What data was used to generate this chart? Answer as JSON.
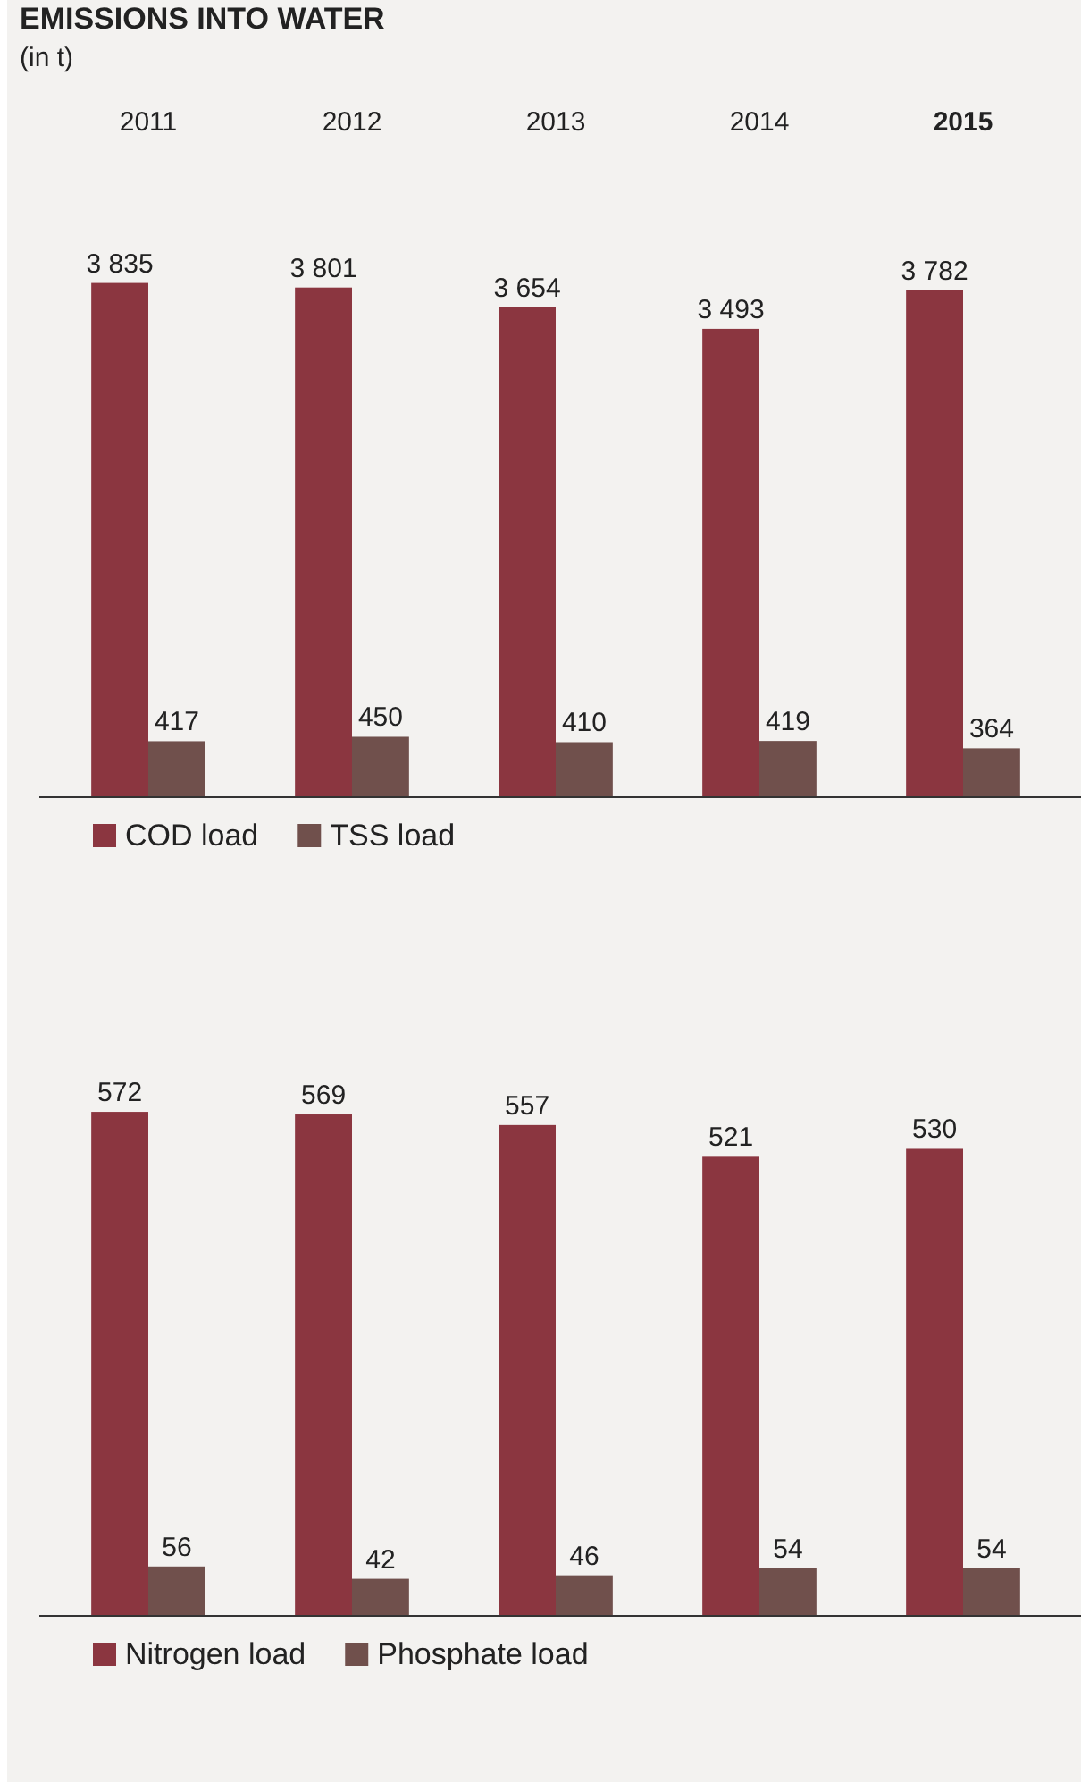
{
  "chart_data": [
    {
      "type": "bar",
      "title": "EMISSIONS INTO WATER",
      "subtitle": "(in t)",
      "categories": [
        "2011",
        "2012",
        "2013",
        "2014",
        "2015"
      ],
      "legend": "bottom left",
      "series": [
        {
          "name": "COD load",
          "color": "#8b3640",
          "values": [
            3835,
            3801,
            3654,
            3493,
            3782
          ],
          "value_labels": [
            "3 835",
            "3 801",
            "3 654",
            "3 493",
            "3 782"
          ]
        },
        {
          "name": "TSS load",
          "color": "#70504c",
          "values": [
            417,
            450,
            410,
            419,
            364
          ],
          "value_labels": [
            "417",
            "450",
            "410",
            "419",
            "364"
          ]
        }
      ]
    },
    {
      "type": "bar",
      "categories": [
        null,
        null,
        null,
        null,
        null
      ],
      "legend": "bottom left",
      "data_labels": true,
      "series": [
        {
          "name": "Nitrogen load",
          "color": "#8b3640",
          "values": [
            572,
            569,
            557,
            521,
            530
          ]
        },
        {
          "name": "Phosphate load",
          "color": "#70504c",
          "values": [
            56,
            42,
            46,
            54,
            54
          ]
        }
      ]
    }
  ]
}
